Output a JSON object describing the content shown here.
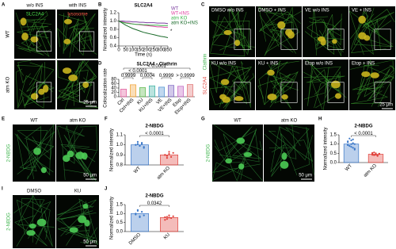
{
  "panels": {
    "A": {
      "label": "A",
      "columns": [
        "w/o INS",
        "with INS"
      ],
      "rows": [
        "WT",
        "atm KO"
      ],
      "stains": [
        "SLC2A4",
        "lysosome"
      ],
      "scale": "25 μm"
    },
    "C": {
      "label": "C",
      "images": [
        "DMSO w/o INS",
        "DMSO + INS",
        "VE w/o INS",
        "VE + INS",
        "KU w/o INS",
        "KU + INS",
        "Etop w/o INS",
        "Etop + INS"
      ],
      "stains": [
        "SLC2A4",
        "Clathrin"
      ],
      "scale": "25 μm"
    },
    "E": {
      "label": "E",
      "columns": [
        "WT",
        "atm KO"
      ],
      "stain": "2-NBDG",
      "scale": "50 μm"
    },
    "G": {
      "label": "G",
      "columns": [
        "WT",
        "atm KO"
      ],
      "stain": "2-NBDG",
      "scale": "50 μm"
    },
    "I": {
      "label": "I",
      "columns": [
        "DMSO",
        "KU"
      ],
      "stain": "2-NBDG",
      "scale": "50 μm"
    }
  },
  "chart_data": [
    {
      "type": "line",
      "label": "B",
      "title": "SLC2A4",
      "ylabel": "Normalized intensity",
      "xlabel": "Time (s)",
      "annotation": "*",
      "x": [
        0,
        25,
        50,
        75,
        100,
        125,
        150,
        175,
        200,
        225,
        250,
        275,
        300,
        325,
        350
      ],
      "series": [
        {
          "name": "WT",
          "color": "#7b3fa0",
          "values": [
            1,
            1,
            0.99,
            0.99,
            0.98,
            0.98,
            0.97,
            0.97,
            0.96,
            0.96,
            0.96,
            0.95,
            0.95,
            0.95,
            0.94
          ]
        },
        {
          "name": "WT+INS",
          "color": "#e040a0",
          "values": [
            1,
            0.98,
            0.96,
            0.95,
            0.93,
            0.92,
            0.91,
            0.9,
            0.89,
            0.88,
            0.87,
            0.86,
            0.86,
            0.85,
            0.85
          ]
        },
        {
          "name": "atm KO",
          "color": "#3cb44b",
          "values": [
            1,
            0.97,
            0.95,
            0.94,
            0.93,
            0.92,
            0.92,
            0.91,
            0.91,
            0.9,
            0.9,
            0.9,
            0.89,
            0.89,
            0.89
          ]
        },
        {
          "name": "atm KO+INS",
          "color": "#1a6b2a",
          "values": [
            1,
            0.95,
            0.9,
            0.86,
            0.82,
            0.79,
            0.76,
            0.73,
            0.71,
            0.69,
            0.67,
            0.65,
            0.63,
            0.62,
            0.6
          ]
        }
      ],
      "xlim": [
        0,
        350
      ],
      "xticks": [
        0,
        50,
        100,
        150,
        200,
        250,
        300,
        350
      ],
      "ylim": [
        0.4,
        1.2
      ],
      "yticks": [
        0.4,
        0.6,
        0.8,
        {
          "value": 1,
          "label": "1.0"
        },
        1.2
      ]
    },
    {
      "type": "bar",
      "label": "D",
      "title": "SLC2A4 - Clathrin",
      "ylabel": "Colocalization rate",
      "categories": [
        "Ctrl",
        "Ctrl+INS",
        "KU",
        "KU+INS",
        "VE",
        "VE+INS",
        "Etop",
        "Etop+INS"
      ],
      "values": [
        35,
        55,
        42,
        50,
        44,
        52,
        48,
        56
      ],
      "colors": [
        "#e05a9a",
        "#f0a030",
        "#5ab848",
        "#38b0a0",
        "#4a90d0",
        "#7a60c0",
        "#c060c0",
        "#e07070"
      ],
      "annotations": [
        "< 0.0001",
        "< 0.0001",
        "0.9999",
        "0.0004",
        "0.9999",
        "> 0.9999"
      ],
      "ylim": [
        0,
        80
      ],
      "yticks": [
        0,
        20,
        40,
        60,
        80
      ]
    },
    {
      "type": "bar",
      "label": "F",
      "title": "2-NBDG",
      "ylabel": "Normalized intensity",
      "categories": [
        "WT",
        "atm KO"
      ],
      "values": [
        1,
        0.9
      ],
      "colors": [
        "#3b78c8",
        "#e0403a"
      ],
      "points": [
        [
          1,
          1.01,
          0.99,
          1.02,
          0.98,
          1,
          1.03,
          0.99,
          1.01,
          0.97
        ],
        [
          0.9,
          0.89,
          0.91,
          0.88,
          0.92,
          0.9,
          0.87,
          0.93
        ]
      ],
      "annotations": [
        "< 0.0001"
      ],
      "ylim": [
        0.8,
        1.1
      ],
      "yticks": [
        0.8,
        0.9,
        {
          "value": 1,
          "label": "1.0"
        },
        1.1
      ]
    },
    {
      "type": "bar",
      "label": "H",
      "title": "2-NBDG",
      "ylabel": "Normalized intensity",
      "categories": [
        "WT",
        "atm KO"
      ],
      "values": [
        1,
        0.45
      ],
      "colors": [
        "#3b78c8",
        "#e0403a"
      ],
      "points": [
        [
          1.1,
          0.9,
          1.2,
          0.8,
          1,
          0.95,
          1.3,
          0.85,
          1.05,
          0.75,
          1.15,
          0.9,
          1,
          1.25,
          0.7,
          0.95
        ],
        [
          0.45,
          0.4,
          0.5,
          0.38,
          0.48,
          0.42,
          0.55,
          0.44,
          0.36,
          0.47,
          0.5,
          0.41,
          0.43,
          0.39,
          0.46,
          0.52
        ]
      ],
      "annotations": [
        "< 0.0001"
      ],
      "ylim": [
        0,
        1.5
      ],
      "yticks": [
        {
          "value": 0,
          "label": "0.0"
        },
        0.5,
        {
          "value": 1,
          "label": "1.0"
        },
        1.5
      ]
    },
    {
      "type": "bar",
      "label": "J",
      "title": "2-NBDG",
      "ylabel": "Normalized intensity",
      "categories": [
        "DMSO",
        "KU"
      ],
      "values": [
        1,
        0.78
      ],
      "colors": [
        "#3b78c8",
        "#e0403a"
      ],
      "points": [
        [
          1,
          1.2,
          0.85,
          1.1,
          0.9,
          0.95,
          1.15,
          0.8
        ],
        [
          0.8,
          0.7,
          0.9,
          0.75,
          0.85,
          0.65,
          0.82,
          0.78
        ]
      ],
      "annotations": [
        "0.0342"
      ],
      "ylim": [
        0,
        1.5
      ],
      "yticks": [
        {
          "value": 0,
          "label": "0.0"
        },
        0.5,
        {
          "value": 1,
          "label": "1.0"
        },
        1.5
      ]
    }
  ]
}
